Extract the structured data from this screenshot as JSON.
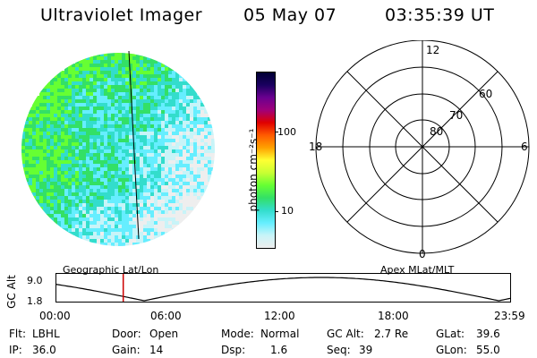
{
  "header": {
    "title": "Ultraviolet Imager",
    "date": "05 May 07",
    "time": "03:35:39 UT"
  },
  "colorbar": {
    "label": "photon cm⁻²s⁻¹",
    "ticks": [
      "100",
      "10"
    ],
    "colors": [
      "#000033",
      "#1a0060",
      "#6a0090",
      "#a0007a",
      "#e00000",
      "#ff5a00",
      "#ffa000",
      "#ffff33",
      "#c8ff33",
      "#66ff33",
      "#33e066",
      "#33ddcc",
      "#66eeff",
      "#c8f4f8",
      "#eeeeee"
    ]
  },
  "polar": {
    "mlt_labels": {
      "top": "12",
      "right": "6",
      "bottom": "0",
      "left": "18"
    },
    "lat_labels": [
      "80",
      "70",
      "60"
    ]
  },
  "timeline": {
    "y_axis_label": "GC Alt",
    "y_ticks": [
      "9.0",
      "1.8"
    ],
    "left_caption": "Geographic Lat/Lon",
    "right_caption": "Apex MLat/MLT",
    "time_ticks": [
      "00:00",
      "06:00",
      "12:00",
      "18:00",
      "23:59"
    ],
    "current_fraction": 0.149
  },
  "info": {
    "flt_label": "Flt:",
    "flt_value": "LBHL",
    "ip_label": "IP:",
    "ip_value": "36.0",
    "door_label": "Door:",
    "door_value": "Open",
    "gain_label": "Gain:",
    "gain_value": "14",
    "mode_label": "Mode:",
    "mode_value": "Normal",
    "dsp_label": "Dsp:",
    "dsp_value": "1.6",
    "gcalt_label": "GC Alt:",
    "gcalt_value": "2.7 Re",
    "seq_label": "Seq:",
    "seq_value": "39",
    "glat_label": "GLat:",
    "glat_value": "39.6",
    "glon_label": "GLon:",
    "glon_value": "55.0"
  },
  "colors": {
    "grid_line": "#000000",
    "time_marker": "#cc0000"
  }
}
